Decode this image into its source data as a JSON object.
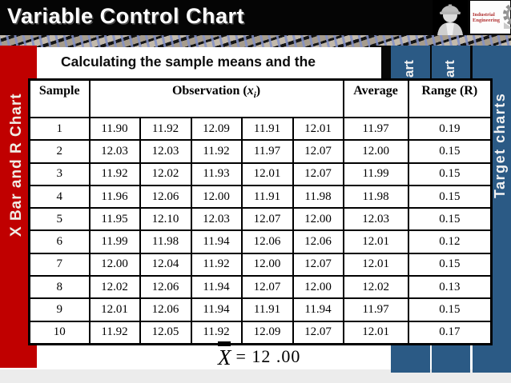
{
  "header": {
    "title": "Variable Control Chart",
    "logo": {
      "line1": "Industrial",
      "line2": "Engineering"
    }
  },
  "sidebar_left": {
    "label": "X Bar and R Chart"
  },
  "sidebar_right": {
    "tabs": [
      {
        "label": "art"
      },
      {
        "label": "art"
      },
      {
        "label": "Target charts"
      }
    ]
  },
  "main": {
    "heading": "Calculating the sample means and the",
    "table": {
      "col_sample": "Sample",
      "col_observation_prefix": "Observation (",
      "col_observation_var": "x",
      "col_observation_sub": "i",
      "col_observation_suffix": ")",
      "col_average": "Average",
      "col_range": "Range (R)",
      "rows": [
        {
          "sample": "1",
          "obs": [
            "11.90",
            "11.92",
            "12.09",
            "11.91",
            "12.01"
          ],
          "average": "11.97",
          "range": "0.19"
        },
        {
          "sample": "2",
          "obs": [
            "12.03",
            "12.03",
            "11.92",
            "11.97",
            "12.07"
          ],
          "average": "12.00",
          "range": "0.15"
        },
        {
          "sample": "3",
          "obs": [
            "11.92",
            "12.02",
            "11.93",
            "12.01",
            "12.07"
          ],
          "average": "11.99",
          "range": "0.15"
        },
        {
          "sample": "4",
          "obs": [
            "11.96",
            "12.06",
            "12.00",
            "11.91",
            "11.98"
          ],
          "average": "11.98",
          "range": "0.15"
        },
        {
          "sample": "5",
          "obs": [
            "11.95",
            "12.10",
            "12.03",
            "12.07",
            "12.00"
          ],
          "average": "12.03",
          "range": "0.15"
        },
        {
          "sample": "6",
          "obs": [
            "11.99",
            "11.98",
            "11.94",
            "12.06",
            "12.06"
          ],
          "average": "12.01",
          "range": "0.12"
        },
        {
          "sample": "7",
          "obs": [
            "12.00",
            "12.04",
            "11.92",
            "12.00",
            "12.07"
          ],
          "average": "12.01",
          "range": "0.15"
        },
        {
          "sample": "8",
          "obs": [
            "12.02",
            "12.06",
            "11.94",
            "12.07",
            "12.00"
          ],
          "average": "12.02",
          "range": "0.13"
        },
        {
          "sample": "9",
          "obs": [
            "12.01",
            "12.06",
            "11.94",
            "11.91",
            "11.94"
          ],
          "average": "11.97",
          "range": "0.15"
        },
        {
          "sample": "10",
          "obs": [
            "11.92",
            "12.05",
            "11.92",
            "12.09",
            "12.07"
          ],
          "average": "12.01",
          "range": "0.17"
        }
      ]
    },
    "formula": {
      "variable": "X",
      "equals": "=",
      "value": "12 .00"
    }
  },
  "colors": {
    "accent_red": "#c00000",
    "accent_blue": "#2b5a85",
    "header_bg": "#050505"
  }
}
